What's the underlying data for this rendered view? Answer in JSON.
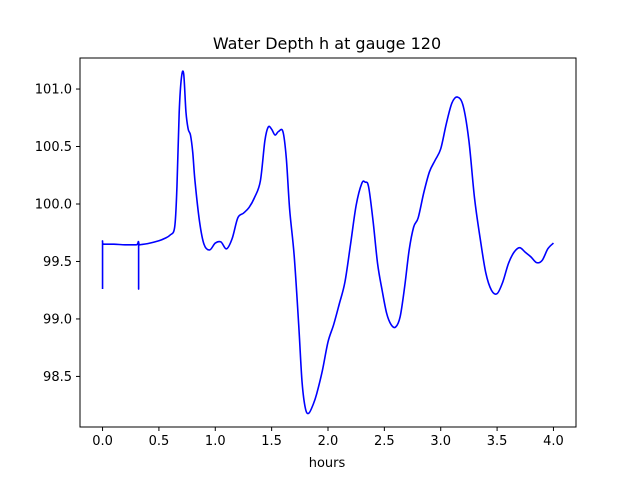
{
  "chart_data": {
    "type": "line",
    "title": "Water Depth h at gauge 120",
    "xlabel": "hours",
    "ylabel": "",
    "xlim": [
      -0.2,
      4.2
    ],
    "ylim": [
      98.06,
      101.27
    ],
    "xticks": [
      {
        "value": 0.0,
        "label": "0.0"
      },
      {
        "value": 0.5,
        "label": "0.5"
      },
      {
        "value": 1.0,
        "label": "1.0"
      },
      {
        "value": 1.5,
        "label": "1.5"
      },
      {
        "value": 2.0,
        "label": "2.0"
      },
      {
        "value": 2.5,
        "label": "2.5"
      },
      {
        "value": 3.0,
        "label": "3.0"
      },
      {
        "value": 3.5,
        "label": "3.5"
      },
      {
        "value": 4.0,
        "label": "4.0"
      }
    ],
    "yticks": [
      {
        "value": 98.5,
        "label": "98.5"
      },
      {
        "value": 99.0,
        "label": "99.0"
      },
      {
        "value": 99.5,
        "label": "99.5"
      },
      {
        "value": 100.0,
        "label": "100.0"
      },
      {
        "value": 100.5,
        "label": "100.5"
      },
      {
        "value": 101.0,
        "label": "101.0"
      }
    ],
    "grid": false,
    "series": [
      {
        "color": "#0000ff",
        "x": [
          0.0,
          0.0,
          0.01,
          0.1,
          0.2,
          0.3,
          0.32,
          0.32,
          0.32,
          0.33,
          0.4,
          0.5,
          0.55,
          0.6,
          0.64,
          0.66,
          0.68,
          0.7,
          0.72,
          0.74,
          0.76,
          0.78,
          0.8,
          0.82,
          0.86,
          0.9,
          0.95,
          1.0,
          1.05,
          1.1,
          1.15,
          1.2,
          1.25,
          1.3,
          1.35,
          1.4,
          1.44,
          1.47,
          1.5,
          1.53,
          1.56,
          1.6,
          1.63,
          1.66,
          1.7,
          1.74,
          1.77,
          1.8,
          1.83,
          1.87,
          1.9,
          1.95,
          2.0,
          2.05,
          2.1,
          2.15,
          2.2,
          2.25,
          2.3,
          2.33,
          2.36,
          2.4,
          2.44,
          2.48,
          2.52,
          2.56,
          2.6,
          2.64,
          2.68,
          2.72,
          2.76,
          2.8,
          2.85,
          2.9,
          2.95,
          3.0,
          3.05,
          3.1,
          3.15,
          3.2,
          3.25,
          3.3,
          3.35,
          3.4,
          3.45,
          3.5,
          3.55,
          3.6,
          3.65,
          3.7,
          3.75,
          3.8,
          3.85,
          3.9,
          3.95,
          4.0
        ],
        "y": [
          99.26,
          99.65,
          99.65,
          99.65,
          99.645,
          99.645,
          99.645,
          99.26,
          99.64,
          99.645,
          99.655,
          99.68,
          99.7,
          99.73,
          99.8,
          100.15,
          100.8,
          101.1,
          101.13,
          100.8,
          100.65,
          100.6,
          100.45,
          100.2,
          99.85,
          99.65,
          99.6,
          99.66,
          99.67,
          99.61,
          99.7,
          99.88,
          99.92,
          99.97,
          100.06,
          100.2,
          100.55,
          100.67,
          100.65,
          100.6,
          100.63,
          100.63,
          100.4,
          99.95,
          99.55,
          98.95,
          98.45,
          98.22,
          98.18,
          98.26,
          98.35,
          98.55,
          98.8,
          98.95,
          99.13,
          99.32,
          99.65,
          99.99,
          100.18,
          100.19,
          100.15,
          99.85,
          99.48,
          99.25,
          99.05,
          98.95,
          98.93,
          99.02,
          99.28,
          99.6,
          99.8,
          99.88,
          100.1,
          100.28,
          100.38,
          100.48,
          100.7,
          100.88,
          100.93,
          100.85,
          100.55,
          100.05,
          99.7,
          99.4,
          99.25,
          99.22,
          99.32,
          99.48,
          99.58,
          99.62,
          99.58,
          99.54,
          99.49,
          99.51,
          99.61,
          99.66
        ]
      }
    ]
  }
}
